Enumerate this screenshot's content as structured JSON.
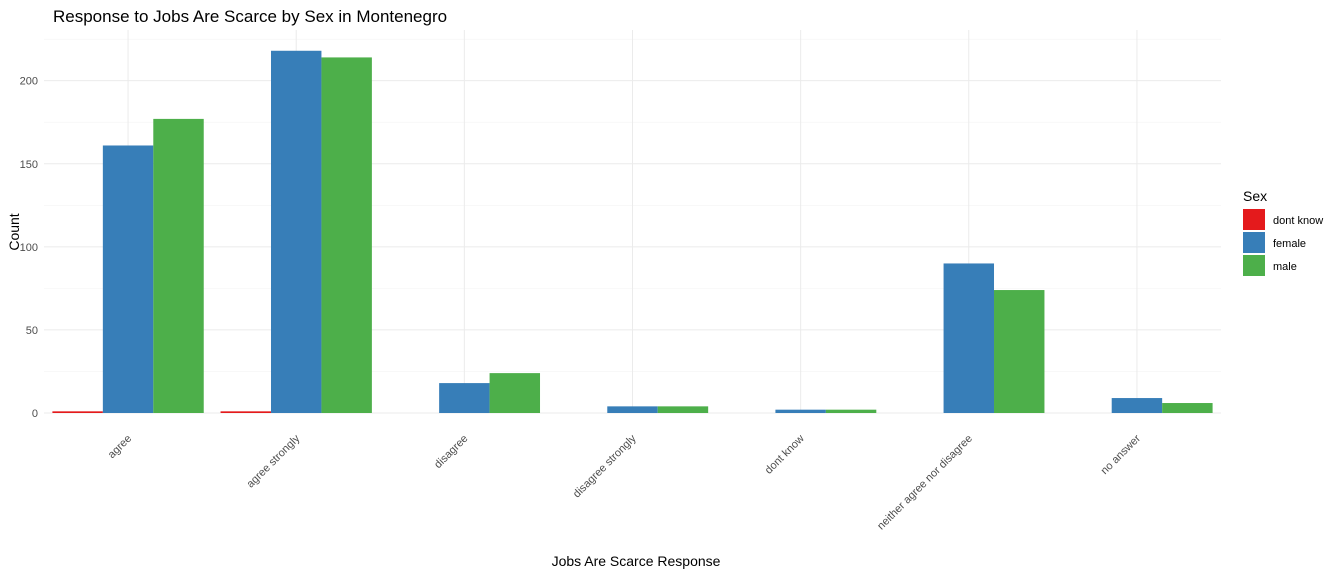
{
  "chart_data": {
    "type": "bar",
    "title": "Response to Jobs Are Scarce by Sex in Montenegro",
    "xlabel": "Jobs Are Scarce Response",
    "ylabel": "Count",
    "categories": [
      "agree",
      "agree strongly",
      "disagree",
      "disagree strongly",
      "dont know",
      "neither agree nor disagree",
      "no answer"
    ],
    "series": [
      {
        "name": "dont know",
        "color": "#E41A1C",
        "values": [
          1,
          1,
          0,
          0,
          0,
          0,
          0
        ]
      },
      {
        "name": "female",
        "color": "#377EB8",
        "values": [
          161,
          218,
          18,
          4,
          2,
          90,
          9
        ]
      },
      {
        "name": "male",
        "color": "#4DAF4A",
        "values": [
          177,
          214,
          24,
          4,
          2,
          74,
          6
        ]
      }
    ],
    "ylim": [
      0,
      225
    ],
    "yticks": [
      0,
      50,
      100,
      150,
      200
    ],
    "grid": true,
    "legend": {
      "title": "Sex",
      "position": "right"
    }
  }
}
